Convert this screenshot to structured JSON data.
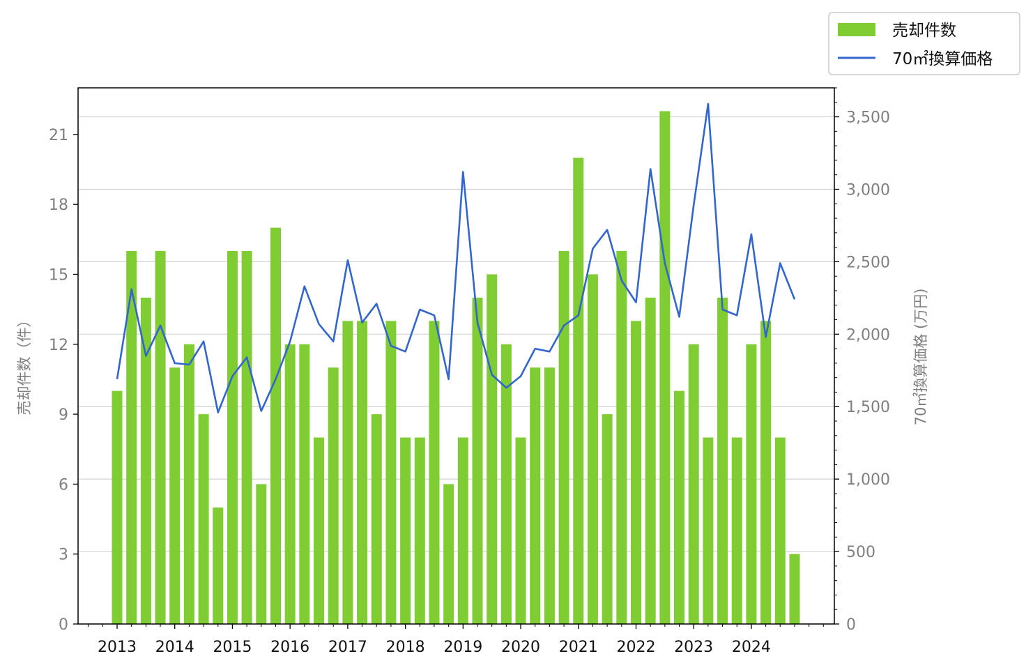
{
  "chart_data": {
    "type": "bar",
    "x_tick_labels": [
      "2013",
      "2014",
      "2015",
      "2016",
      "2017",
      "2018",
      "2019",
      "2020",
      "2021",
      "2022",
      "2023",
      "2024"
    ],
    "ylabel_left": "売却件数（件）",
    "ylabel_right": "70㎡換算価格 (万円)",
    "ylim_left": [
      0,
      23
    ],
    "ylim_right": [
      0,
      3700
    ],
    "yticks_left": [
      "0",
      "3",
      "6",
      "9",
      "12",
      "15",
      "18",
      "21"
    ],
    "yticks_left_values": [
      0,
      3,
      6,
      9,
      12,
      15,
      18,
      21
    ],
    "yticks_right": [
      "0",
      "500",
      "1,000",
      "1,500",
      "2,000",
      "2,500",
      "3,000",
      "3,500"
    ],
    "yticks_right_values": [
      0,
      500,
      1000,
      1500,
      2000,
      2500,
      3000,
      3500
    ],
    "grid": "horizontal, right axis",
    "legend_position": "top-right",
    "series": [
      {
        "name": "売却件数",
        "type": "bar",
        "color": "#7fcc33",
        "values": [
          10,
          16,
          14,
          16,
          11,
          12,
          9,
          5,
          16,
          16,
          6,
          17,
          12,
          12,
          8,
          11,
          13,
          13,
          9,
          13,
          8,
          8,
          13,
          6,
          8,
          14,
          15,
          12,
          8,
          11,
          11,
          16,
          20,
          15,
          9,
          16,
          13,
          14,
          22,
          10,
          12,
          8,
          14,
          8,
          12,
          13,
          8,
          3
        ]
      },
      {
        "name": "70㎡換算価格",
        "type": "line",
        "color": "#3366cc",
        "values": [
          1690,
          2310,
          1850,
          2060,
          1800,
          1790,
          1950,
          1460,
          1710,
          1840,
          1470,
          1690,
          1950,
          2330,
          2070,
          1950,
          2510,
          2080,
          2210,
          1920,
          1880,
          2170,
          2130,
          1690,
          3120,
          2080,
          1720,
          1630,
          1710,
          1900,
          1880,
          2060,
          2130,
          2590,
          2720,
          2370,
          2220,
          3140,
          2490,
          2120,
          2890,
          3590,
          2170,
          2130,
          2690,
          1980,
          2490,
          2240
        ]
      }
    ]
  },
  "legend": {
    "items": [
      {
        "label": "売却件数",
        "color": "#7fcc33",
        "kind": "bar"
      },
      {
        "label": "70㎡換算価格",
        "color": "#3366cc",
        "kind": "line"
      }
    ]
  }
}
